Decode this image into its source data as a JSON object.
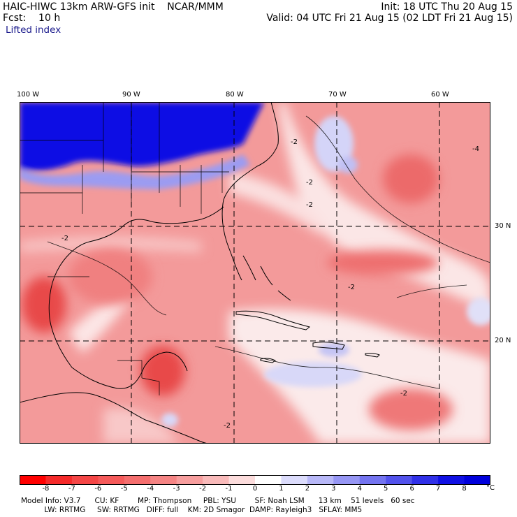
{
  "header": {
    "model_line": "HAIC-HIWC 13km ARW-GFS init    NCAR/MMM",
    "fcst_line": "Fcst:    10 h",
    "field_name": "Lifted index",
    "init_line": "Init: 18 UTC Thu 20 Aug 15",
    "valid_line": "Valid: 04 UTC Fri 21 Aug 15 (02 LDT Fri 21 Aug 15)"
  },
  "map": {
    "lon_labels": [
      "100 W",
      "90 W",
      "80 W",
      "70 W",
      "60 W"
    ],
    "lat_labels": [
      "30 N",
      "20 N"
    ],
    "contour_labels": [
      "-2",
      "-2",
      "-2",
      "-2",
      "-2",
      "-2",
      "-2",
      "-4"
    ],
    "colors": {
      "ocean_red": "#f28a8a",
      "deep_red": "#e63030",
      "pink": "#f8c8c8",
      "white": "#fdf3f3",
      "light_blue": "#c8c8f5",
      "deep_blue": "#0a14e6"
    }
  },
  "colorbar": {
    "labels": [
      "-8",
      "-7",
      "-6",
      "-5",
      "-4",
      "-3",
      "-2",
      "-1",
      "0",
      "1",
      "2",
      "3",
      "4",
      "5",
      "6",
      "7",
      "8"
    ],
    "unit": "°C",
    "colors": [
      "#ff0000",
      "#f52a2a",
      "#f44646",
      "#f55a5a",
      "#f46e6e",
      "#f58484",
      "#f79e9e",
      "#f9baba",
      "#fcdcdc",
      "#ffffff",
      "#dcdcfc",
      "#b8b8f8",
      "#9696f4",
      "#7474f0",
      "#5252ec",
      "#3030e8",
      "#1010e4",
      "#0000dc"
    ]
  },
  "footer": {
    "line1": "Model Info: V3.7      CU: KF        MP: Thompson     PBL: YSU        SF: Noah LSM      13 km    51 levels   60 sec",
    "line2": "          LW: RRTMG     SW: RRTMG   DIFF: full    KM: 2D Smagor  DAMP: Rayleigh3   SFLAY: MM5"
  }
}
